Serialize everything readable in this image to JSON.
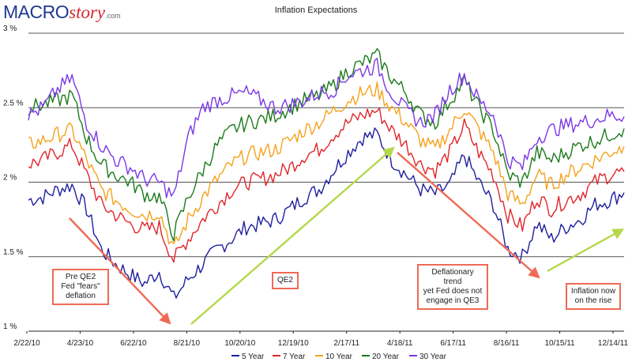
{
  "logo": {
    "part1": "MACRO",
    "part2": "story",
    "part3": ".com"
  },
  "colors": {
    "five_year": "#1f1f9e",
    "seven_year": "#e0262a",
    "ten_year": "#f5a21b",
    "twenty_year": "#1b7a1b",
    "thirty_year": "#7b38e6",
    "arrow_red": "#ef6a55",
    "arrow_green": "#b5d84a",
    "grid": "#555555"
  },
  "annotations": [
    {
      "id": "pre_qe2",
      "text": "Pre QE2\nFed \"fears\"\ndeflation"
    },
    {
      "id": "qe2",
      "text": "QE2"
    },
    {
      "id": "deflationary",
      "text": "Deflationary trend\nyet Fed does not\nengage in QE3"
    },
    {
      "id": "inflation_rise",
      "text": "Inflation now\non the rise"
    }
  ],
  "chart_data": {
    "type": "line",
    "title": "Inflation Expectations",
    "xlabel": "",
    "ylabel": "",
    "ylim": [
      1.0,
      3.0
    ],
    "yticks": [
      "1 %",
      "1.5 %",
      "2 %",
      "2.5 %",
      "3 %"
    ],
    "xticks": [
      "2/22/10",
      "4/23/10",
      "6/22/10",
      "8/21/10",
      "10/20/10",
      "12/19/10",
      "2/17/11",
      "4/18/11",
      "6/17/11",
      "8/16/11",
      "10/15/11",
      "12/14/11"
    ],
    "legend_position": "bottom-center",
    "x": [
      "2/22/10",
      "3/15/10",
      "4/5/10",
      "4/23/10",
      "5/10/10",
      "5/25/10",
      "6/8/10",
      "6/22/10",
      "7/10/10",
      "7/30/10",
      "8/21/10",
      "9/10/10",
      "9/25/10",
      "10/8/10",
      "10/20/10",
      "11/8/10",
      "11/25/10",
      "12/19/10",
      "1/10/11",
      "1/30/11",
      "2/17/11",
      "3/1/11",
      "3/20/11",
      "4/5/11",
      "4/18/11",
      "5/5/11",
      "5/20/11",
      "6/3/11",
      "6/17/11",
      "7/5/11",
      "7/25/11",
      "8/5/11",
      "8/16/11",
      "9/1/11",
      "9/20/11",
      "10/1/11",
      "10/15/11",
      "11/1/11",
      "11/20/11",
      "12/1/11",
      "12/14/11",
      "12/30/11"
    ],
    "series": [
      {
        "name": "5 Year",
        "color": "#1f1f9e",
        "values": [
          1.88,
          1.9,
          1.95,
          1.98,
          1.82,
          1.55,
          1.45,
          1.38,
          1.32,
          1.4,
          1.22,
          1.35,
          1.45,
          1.55,
          1.62,
          1.7,
          1.72,
          1.75,
          1.82,
          1.9,
          1.95,
          2.08,
          2.2,
          2.3,
          2.32,
          2.15,
          2.05,
          1.95,
          1.92,
          1.98,
          2.18,
          2.0,
          1.85,
          1.55,
          1.5,
          1.72,
          1.62,
          1.7,
          1.75,
          1.85,
          1.88,
          1.93
        ]
      },
      {
        "name": "7 Year",
        "color": "#e0262a",
        "values": [
          2.12,
          2.15,
          2.2,
          2.25,
          2.05,
          1.85,
          1.78,
          1.72,
          1.68,
          1.7,
          1.48,
          1.62,
          1.75,
          1.85,
          1.95,
          2.0,
          2.02,
          2.05,
          2.1,
          2.18,
          2.22,
          2.32,
          2.4,
          2.45,
          2.48,
          2.35,
          2.25,
          2.12,
          2.08,
          2.2,
          2.38,
          2.2,
          2.05,
          1.78,
          1.7,
          1.9,
          1.82,
          1.88,
          1.92,
          2.0,
          2.05,
          2.07
        ]
      },
      {
        "name": "10 Year",
        "color": "#f5a21b",
        "values": [
          2.25,
          2.28,
          2.32,
          2.35,
          2.15,
          1.95,
          1.88,
          1.82,
          1.78,
          1.8,
          1.55,
          1.75,
          1.9,
          2.02,
          2.12,
          2.18,
          2.2,
          2.22,
          2.28,
          2.35,
          2.4,
          2.48,
          2.55,
          2.6,
          2.62,
          2.5,
          2.4,
          2.28,
          2.22,
          2.35,
          2.5,
          2.35,
          2.2,
          1.92,
          1.85,
          2.05,
          1.98,
          2.05,
          2.1,
          2.15,
          2.2,
          2.24
        ]
      },
      {
        "name": "20 Year",
        "color": "#1b7a1b",
        "values": [
          2.5,
          2.52,
          2.55,
          2.58,
          2.3,
          2.12,
          2.05,
          2.0,
          1.92,
          1.9,
          1.65,
          1.9,
          2.08,
          2.25,
          2.35,
          2.4,
          2.42,
          2.45,
          2.5,
          2.55,
          2.58,
          2.65,
          2.75,
          2.8,
          2.85,
          2.7,
          2.6,
          2.45,
          2.4,
          2.55,
          2.68,
          2.5,
          2.35,
          2.05,
          2.0,
          2.2,
          2.15,
          2.2,
          2.25,
          2.28,
          2.32,
          2.36
        ]
      },
      {
        "name": "30 Year",
        "color": "#7b38e6",
        "values": [
          2.45,
          2.5,
          2.62,
          2.7,
          2.4,
          2.25,
          2.15,
          2.1,
          2.02,
          2.0,
          1.9,
          2.3,
          2.5,
          2.55,
          2.58,
          2.6,
          2.55,
          2.5,
          2.52,
          2.55,
          2.6,
          2.62,
          2.72,
          2.75,
          2.78,
          2.6,
          2.48,
          2.4,
          2.45,
          2.62,
          2.72,
          2.55,
          2.45,
          2.15,
          2.1,
          2.3,
          2.35,
          2.38,
          2.4,
          2.42,
          2.45,
          2.44
        ]
      }
    ]
  }
}
